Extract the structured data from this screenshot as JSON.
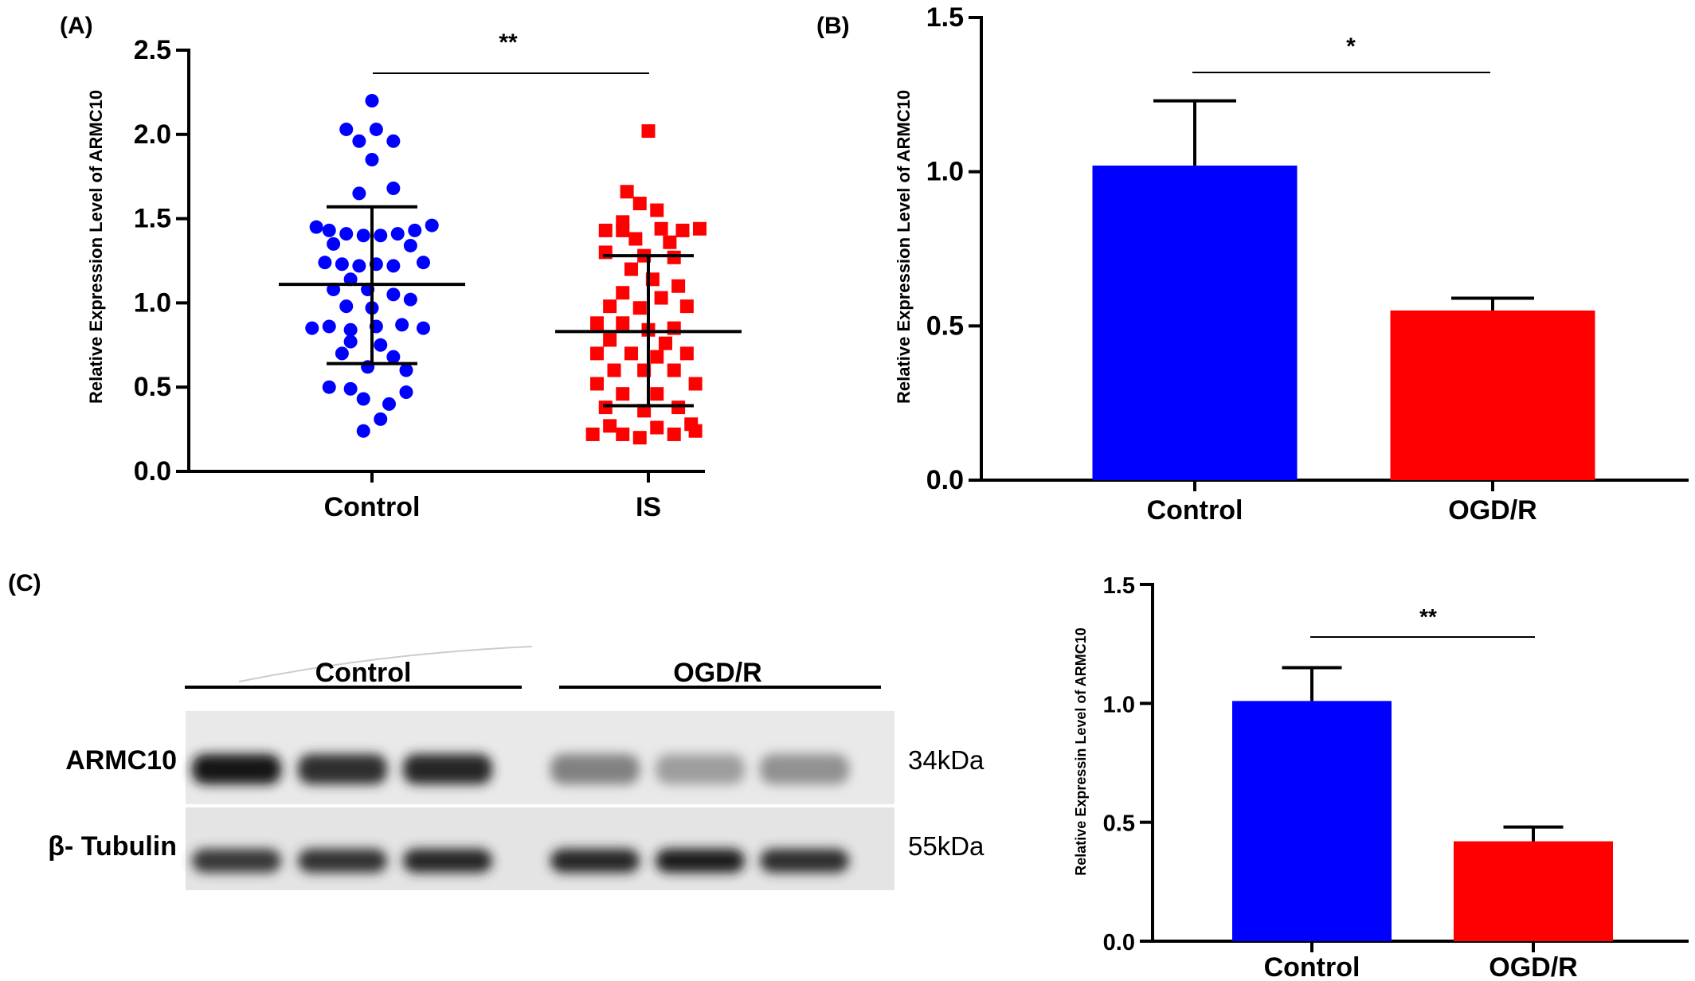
{
  "chart_data": [
    {
      "panel": "(A)",
      "type": "scatter",
      "ylabel": "Relative Expression Level of ARMC10",
      "ylim": [
        0,
        2.5
      ],
      "yticks": [
        "0.0",
        "0.5",
        "1.0",
        "1.5",
        "2.0",
        "2.5"
      ],
      "categories": [
        "Control",
        "IS"
      ],
      "significance": "**",
      "colors": {
        "Control": "#0000ff",
        "IS": "#ff0000"
      },
      "series": [
        {
          "category": "Control",
          "marker": "circle",
          "mean": 1.11,
          "sd_upper": 1.57,
          "sd_lower": 0.64,
          "points": [
            [
              0,
              2.2
            ],
            [
              -0.12,
              2.03
            ],
            [
              -0.06,
              1.96
            ],
            [
              0.1,
              1.96
            ],
            [
              0.02,
              2.03
            ],
            [
              0.0,
              1.85
            ],
            [
              -0.06,
              1.65
            ],
            [
              0.1,
              1.68
            ],
            [
              -0.26,
              1.45
            ],
            [
              -0.2,
              1.43
            ],
            [
              -0.12,
              1.41
            ],
            [
              -0.04,
              1.4
            ],
            [
              0.04,
              1.4
            ],
            [
              0.12,
              1.41
            ],
            [
              0.2,
              1.43
            ],
            [
              0.28,
              1.46
            ],
            [
              -0.18,
              1.35
            ],
            [
              0.18,
              1.34
            ],
            [
              -0.22,
              1.24
            ],
            [
              -0.14,
              1.23
            ],
            [
              -0.06,
              1.22
            ],
            [
              0.02,
              1.23
            ],
            [
              0.1,
              1.22
            ],
            [
              0.24,
              1.24
            ],
            [
              -0.1,
              1.14
            ],
            [
              -0.18,
              1.08
            ],
            [
              -0.02,
              1.08
            ],
            [
              0.1,
              1.05
            ],
            [
              -0.12,
              0.98
            ],
            [
              0.0,
              0.97
            ],
            [
              0.18,
              1.02
            ],
            [
              -0.28,
              0.85
            ],
            [
              -0.2,
              0.86
            ],
            [
              -0.1,
              0.84
            ],
            [
              0.02,
              0.86
            ],
            [
              0.14,
              0.87
            ],
            [
              0.24,
              0.85
            ],
            [
              -0.1,
              0.77
            ],
            [
              0.04,
              0.75
            ],
            [
              -0.14,
              0.7
            ],
            [
              0.1,
              0.68
            ],
            [
              -0.02,
              0.62
            ],
            [
              0.16,
              0.6
            ],
            [
              -0.2,
              0.5
            ],
            [
              -0.1,
              0.49
            ],
            [
              0.16,
              0.47
            ],
            [
              -0.04,
              0.43
            ],
            [
              0.08,
              0.4
            ],
            [
              0.04,
              0.31
            ],
            [
              -0.04,
              0.24
            ]
          ]
        },
        {
          "category": "IS",
          "marker": "square",
          "mean": 0.83,
          "sd_upper": 1.28,
          "sd_lower": 0.39,
          "points": [
            [
              0,
              2.02
            ],
            [
              -0.1,
              1.66
            ],
            [
              -0.04,
              1.59
            ],
            [
              0.04,
              1.55
            ],
            [
              -0.12,
              1.48
            ],
            [
              -0.2,
              1.43
            ],
            [
              -0.12,
              1.43
            ],
            [
              0.06,
              1.44
            ],
            [
              0.16,
              1.43
            ],
            [
              0.24,
              1.44
            ],
            [
              -0.06,
              1.38
            ],
            [
              0.1,
              1.36
            ],
            [
              -0.2,
              1.3
            ],
            [
              -0.02,
              1.28
            ],
            [
              0.12,
              1.27
            ],
            [
              -0.08,
              1.2
            ],
            [
              0.02,
              1.14
            ],
            [
              0.14,
              1.1
            ],
            [
              -0.12,
              1.06
            ],
            [
              0.06,
              1.03
            ],
            [
              -0.18,
              0.98
            ],
            [
              -0.04,
              0.97
            ],
            [
              0.18,
              0.98
            ],
            [
              -0.24,
              0.88
            ],
            [
              -0.12,
              0.88
            ],
            [
              0.0,
              0.84
            ],
            [
              0.12,
              0.85
            ],
            [
              -0.18,
              0.78
            ],
            [
              0.08,
              0.76
            ],
            [
              -0.24,
              0.7
            ],
            [
              -0.08,
              0.7
            ],
            [
              0.04,
              0.68
            ],
            [
              0.18,
              0.7
            ],
            [
              -0.16,
              0.6
            ],
            [
              -0.02,
              0.6
            ],
            [
              0.12,
              0.6
            ],
            [
              -0.24,
              0.52
            ],
            [
              0.22,
              0.52
            ],
            [
              -0.12,
              0.46
            ],
            [
              0.04,
              0.46
            ],
            [
              -0.2,
              0.38
            ],
            [
              -0.02,
              0.36
            ],
            [
              0.14,
              0.38
            ],
            [
              -0.18,
              0.27
            ],
            [
              0.04,
              0.26
            ],
            [
              0.2,
              0.28
            ],
            [
              -0.26,
              0.22
            ],
            [
              -0.12,
              0.22
            ],
            [
              -0.04,
              0.2
            ],
            [
              0.12,
              0.22
            ],
            [
              0.22,
              0.24
            ]
          ]
        }
      ]
    },
    {
      "panel": "(B)",
      "type": "bar",
      "ylabel": "Relative Expression Level of ARMC10",
      "ylim": [
        0,
        1.5
      ],
      "yticks": [
        "0.0",
        "0.5",
        "1.0",
        "1.5"
      ],
      "categories": [
        "Control",
        "OGD/R"
      ],
      "values": [
        1.02,
        0.55
      ],
      "errors": [
        0.21,
        0.04
      ],
      "colors": [
        "#0000ff",
        "#ff0000"
      ],
      "significance": "*"
    },
    {
      "panel": "(C)",
      "type": "bar",
      "ylabel": "Relative Expressin Level of ARMC10",
      "ylim": [
        0,
        1.5
      ],
      "yticks": [
        "0.0",
        "0.5",
        "1.0",
        "1.5"
      ],
      "categories": [
        "Control",
        "OGD/R"
      ],
      "values": [
        1.01,
        0.42
      ],
      "errors": [
        0.14,
        0.06
      ],
      "colors": [
        "#0000ff",
        "#ff0000"
      ],
      "significance": "**"
    }
  ],
  "blot": {
    "panel": "(C)",
    "groups": [
      "Control",
      "OGD/R"
    ],
    "rows": [
      {
        "label": "ARMC10",
        "size": "34kDa",
        "intensities": [
          0.92,
          0.82,
          0.86,
          0.45,
          0.32,
          0.38
        ]
      },
      {
        "label": "β- Tubulin",
        "size": "55kDa",
        "intensities": [
          0.78,
          0.8,
          0.86,
          0.86,
          0.9,
          0.82
        ]
      }
    ]
  }
}
